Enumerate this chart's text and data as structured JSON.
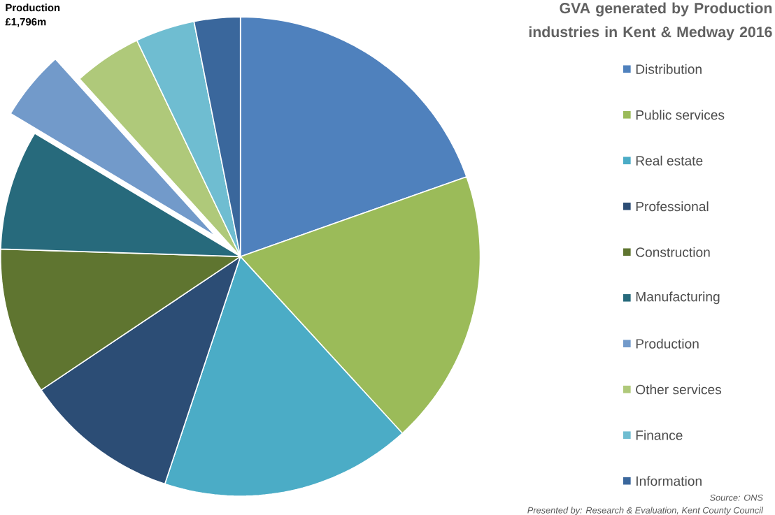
{
  "chart_data": {
    "type": "pie",
    "title": "GVA generated by Production  industries in Kent & Medway 2016",
    "categories": [
      "Distribution",
      "Public services",
      "Real estate",
      "Professional",
      "Construction",
      "Manufacturing",
      "Production",
      "Other services",
      "Finance",
      "Information"
    ],
    "values": [
      19.6,
      18.6,
      16.9,
      10.5,
      9.9,
      8.1,
      4.7,
      4.6,
      4.0,
      3.1
    ],
    "colors": [
      "#4f81bd",
      "#9bbb59",
      "#4bacc6",
      "#2c4d75",
      "#5f7530",
      "#276a7c",
      "#729aca",
      "#afc97a",
      "#6fbdd1",
      "#3a679c"
    ],
    "legend": "right",
    "annotations": [
      {
        "text": "Production £1,796m",
        "x": "Production"
      },
      "Source: ONS",
      "Presented by: Research & Evaluation, Kent County Council"
    ]
  }
}
